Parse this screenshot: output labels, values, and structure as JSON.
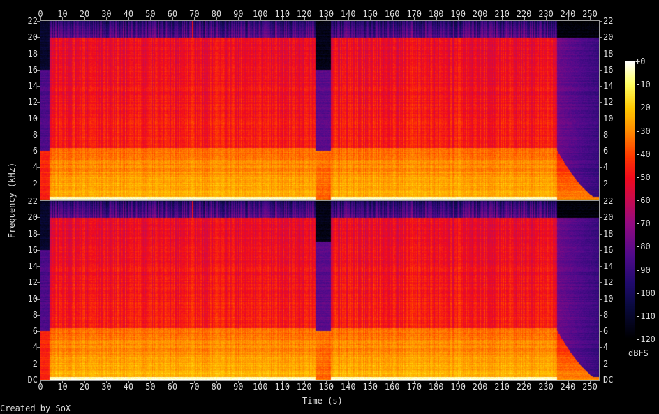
{
  "footer": {
    "credit": "Created by SoX"
  },
  "chart_data": {
    "type": "heatmap",
    "title": "",
    "xlabel": "Time (s)",
    "ylabel": "Frequency (kHz)",
    "xlim": [
      0,
      254
    ],
    "ylim_khz": [
      0,
      22
    ],
    "channels": 2,
    "x_ticks": [
      "0",
      "10",
      "20",
      "30",
      "40",
      "50",
      "60",
      "70",
      "80",
      "90",
      "100",
      "110",
      "120",
      "130",
      "140",
      "150",
      "160",
      "170",
      "180",
      "190",
      "200",
      "210",
      "220",
      "230",
      "240",
      "250"
    ],
    "y_ticks_top": [
      "22",
      "20",
      "18",
      "16",
      "14",
      "12",
      "10",
      "8",
      "6",
      "4",
      "2"
    ],
    "y_ticks_bottom": [
      "20",
      "18",
      "16",
      "14",
      "12",
      "10",
      "8",
      "6",
      "4",
      "2",
      "DC"
    ],
    "colorbar": {
      "label": "dBFS",
      "range_db": [
        -120,
        0
      ],
      "ticks": [
        "+0",
        "-10",
        "-20",
        "-30",
        "-40",
        "-50",
        "-60",
        "-70",
        "-80",
        "-90",
        "-100",
        "-110",
        "-120"
      ]
    },
    "segments": [
      {
        "t0": 0,
        "t1": 4,
        "kind": "quiet",
        "cutoff_khz": 6
      },
      {
        "t0": 4,
        "t1": 125,
        "kind": "music",
        "cutoff_khz": 20
      },
      {
        "t0": 125,
        "t1": 132,
        "kind": "lowpass",
        "cutoff_khz": 6
      },
      {
        "t0": 132,
        "t1": 235,
        "kind": "music",
        "cutoff_khz": 20
      },
      {
        "t0": 235,
        "t1": 254,
        "kind": "fadeout",
        "cutoff_khz": 6
      }
    ],
    "transient_s": 69
  }
}
